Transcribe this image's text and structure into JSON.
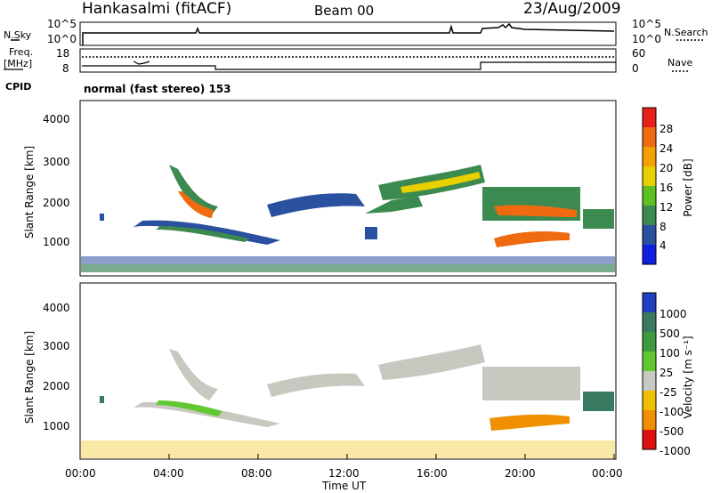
{
  "header": {
    "station": "Hankasalmi (fitACF)",
    "beam": "Beam 00",
    "date": "23/Aug/2009"
  },
  "panels": {
    "nsky_label": "N.Sky",
    "nsky_ticks": [
      "10^5",
      "10^0"
    ],
    "nsearch_label": "N.Search",
    "nsearch_ticks": [
      "10^5",
      "10^0"
    ],
    "freq_label": "Freq.",
    "freq_unit": "[MHz]",
    "freq_ticks": [
      "18",
      "8"
    ],
    "nave_label": "Nave",
    "nave_ticks": [
      "60",
      "0"
    ],
    "cpid_label": "CPID",
    "cpid_value": "normal (fast stereo) 153"
  },
  "chart_data": [
    {
      "type": "heatmap",
      "name": "power",
      "xlabel": "",
      "ylabel": "Slant Range [km]",
      "xlim": [
        "00:00",
        "24:00"
      ],
      "ylim": [
        0,
        4500
      ],
      "y_ticks": [
        "4000",
        "3000",
        "2000",
        "1000"
      ],
      "colorbar_label": "Power [dB]",
      "colorbar_ticks": [
        "28",
        "24",
        "20",
        "16",
        "12",
        "8",
        "4"
      ],
      "colorbar_colors": [
        "#e8201a",
        "#f06a10",
        "#f4a000",
        "#e8d000",
        "#5cc020",
        "#3c8a50",
        "#2a50a0",
        "#1020e0"
      ]
    },
    {
      "type": "heatmap",
      "name": "velocity",
      "xlabel": "Time UT",
      "ylabel": "Slant Range [km]",
      "xlim": [
        "00:00",
        "24:00"
      ],
      "ylim": [
        0,
        4500
      ],
      "x_ticks": [
        "00:00",
        "04:00",
        "08:00",
        "12:00",
        "16:00",
        "20:00",
        "00:00"
      ],
      "y_ticks": [
        "4000",
        "3000",
        "2000",
        "1000"
      ],
      "colorbar_label": "Velocity [m s⁻¹]",
      "colorbar_ticks": [
        "1000",
        "500",
        "100",
        "25",
        "-25",
        "-100",
        "-500",
        "-1000"
      ],
      "colorbar_colors": [
        "#2040c0",
        "#3a7a60",
        "#3c9a40",
        "#60c830",
        "#c8c8c0",
        "#f0c000",
        "#f09000",
        "#f05000",
        "#e01010"
      ]
    }
  ]
}
